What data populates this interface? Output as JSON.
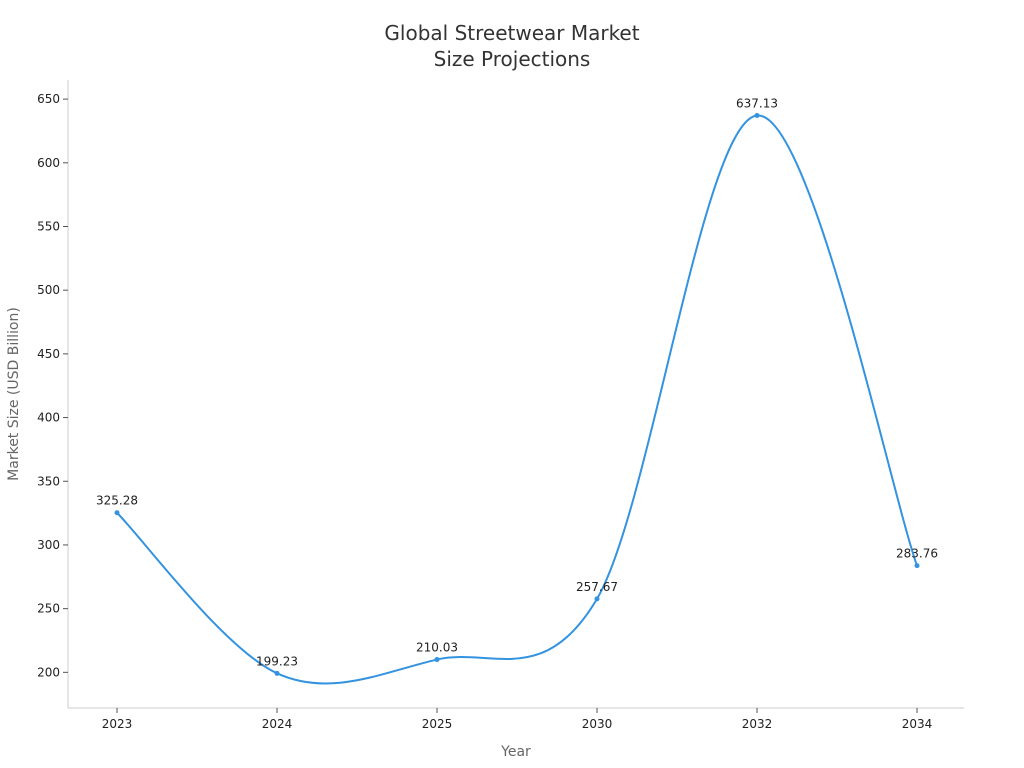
{
  "chart_data": {
    "type": "line",
    "title_lines": [
      "Global Streetwear Market",
      "Size Projections"
    ],
    "xlabel": "Year",
    "ylabel": "Market Size (USD Billion)",
    "categories": [
      "2023",
      "2024",
      "2025",
      "2030",
      "2032",
      "2034"
    ],
    "series": [
      {
        "name": "Market Size",
        "values": [
          325.28,
          199.23,
          210.03,
          257.67,
          637.13,
          283.76
        ],
        "labels": [
          "325.28",
          "199.23",
          "210.03",
          "257.67",
          "637.13",
          "283.76"
        ],
        "color": "#3393e0"
      }
    ],
    "ylim": [
      172,
      665
    ],
    "yticks": [
      200,
      250,
      300,
      350,
      400,
      450,
      500,
      550,
      600,
      650
    ],
    "grid": false,
    "legend": "none"
  }
}
